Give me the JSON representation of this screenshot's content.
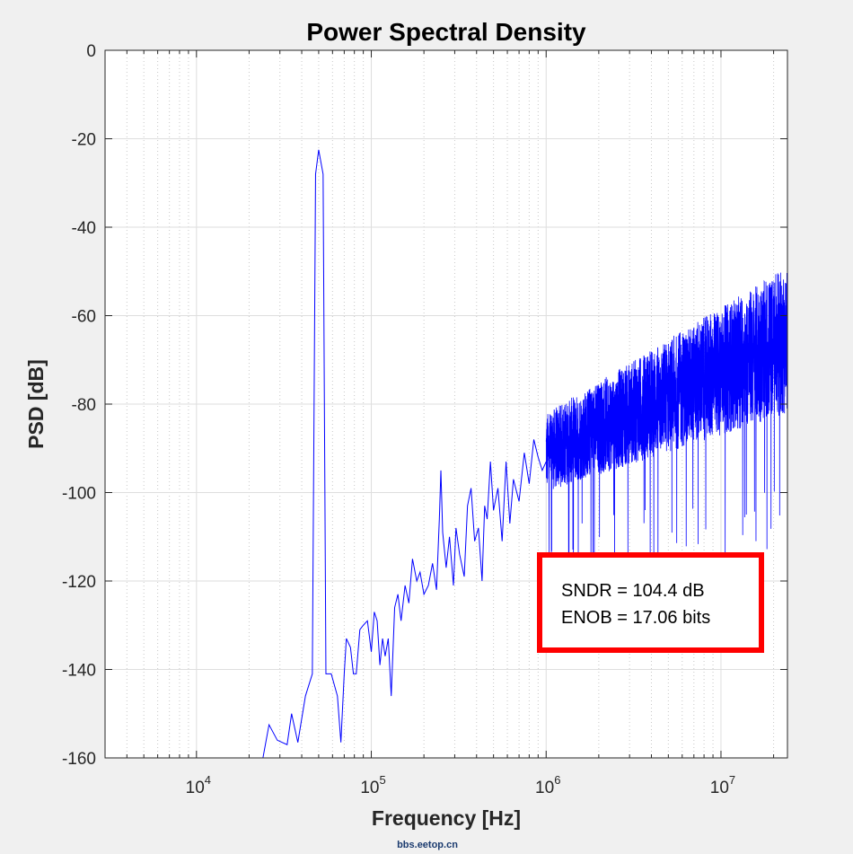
{
  "chart_data": {
    "type": "line",
    "title": "Power Spectral Density",
    "xlabel": "Frequency [Hz]",
    "ylabel": "PSD [dB]",
    "x_scale": "log",
    "xlim": [
      3000,
      24000000
    ],
    "ylim": [
      -160,
      0
    ],
    "grid": true,
    "x_ticks": [
      {
        "value": 10000,
        "base": "10",
        "exp": "4"
      },
      {
        "value": 100000,
        "base": "10",
        "exp": "5"
      },
      {
        "value": 1000000,
        "base": "10",
        "exp": "6"
      },
      {
        "value": 10000000,
        "base": "10",
        "exp": "7"
      }
    ],
    "y_ticks": [
      {
        "value": 0,
        "label": "0"
      },
      {
        "value": -20,
        "label": "-20"
      },
      {
        "value": -40,
        "label": "-40"
      },
      {
        "value": -60,
        "label": "-60"
      },
      {
        "value": -80,
        "label": "-80"
      },
      {
        "value": -100,
        "label": "-100"
      },
      {
        "value": -120,
        "label": "-120"
      },
      {
        "value": -140,
        "label": "-140"
      },
      {
        "value": -160,
        "label": "-160"
      }
    ],
    "series": [
      {
        "color": "#0000ff",
        "points": [
          [
            24000,
            -160
          ],
          [
            26000,
            -152.5
          ],
          [
            29000,
            -156
          ],
          [
            33000,
            -157
          ],
          [
            35000,
            -150
          ],
          [
            38000,
            -156.5
          ],
          [
            42000,
            -146
          ],
          [
            46000,
            -141
          ],
          [
            48000,
            -28
          ],
          [
            50000,
            -22.5
          ],
          [
            53000,
            -28
          ],
          [
            55000,
            -141
          ],
          [
            59000,
            -141
          ],
          [
            64000,
            -146
          ],
          [
            67000,
            -156.5
          ],
          [
            70000,
            -141
          ],
          [
            72000,
            -133
          ],
          [
            76000,
            -135
          ],
          [
            79000,
            -141
          ],
          [
            82000,
            -141
          ],
          [
            86000,
            -131
          ],
          [
            90000,
            -130
          ],
          [
            95000,
            -129
          ],
          [
            100000,
            -136
          ],
          [
            104000,
            -127
          ],
          [
            108000,
            -129
          ],
          [
            112000,
            -139
          ],
          [
            116000,
            -133
          ],
          [
            120000,
            -137
          ],
          [
            125000,
            -133
          ],
          [
            130000,
            -146
          ],
          [
            136000,
            -126
          ],
          [
            142000,
            -123
          ],
          [
            148000,
            -129
          ],
          [
            156000,
            -121
          ],
          [
            164000,
            -125
          ],
          [
            172000,
            -115
          ],
          [
            182000,
            -120
          ],
          [
            190000,
            -118
          ],
          [
            200000,
            -123
          ],
          [
            212000,
            -121
          ],
          [
            224000,
            -116
          ],
          [
            236000,
            -122
          ],
          [
            245000,
            -106
          ],
          [
            250000,
            -95
          ],
          [
            256000,
            -109
          ],
          [
            268000,
            -117
          ],
          [
            280000,
            -110
          ],
          [
            295000,
            -121
          ],
          [
            305000,
            -108
          ],
          [
            320000,
            -114
          ],
          [
            340000,
            -119
          ],
          [
            355000,
            -103
          ],
          [
            372000,
            -99
          ],
          [
            390000,
            -111
          ],
          [
            410000,
            -108
          ],
          [
            430000,
            -120
          ],
          [
            445000,
            -103
          ],
          [
            460000,
            -106
          ],
          [
            480000,
            -93
          ],
          [
            500000,
            -104
          ],
          [
            530000,
            -99
          ],
          [
            560000,
            -111
          ],
          [
            590000,
            -93
          ],
          [
            620000,
            -107
          ],
          [
            650000,
            -97
          ],
          [
            700000,
            -102
          ],
          [
            750000,
            -91
          ],
          [
            800000,
            -98
          ],
          [
            850000,
            -88
          ],
          [
            900000,
            -92
          ],
          [
            950000,
            -95
          ],
          [
            1000000,
            -93
          ]
        ]
      }
    ],
    "noise_band": {
      "color": "#0000ff",
      "start_hz": 1000000,
      "end_hz": 24000000,
      "upper_start_db": -82,
      "upper_end_db": -49,
      "lower_start_db": -103,
      "lower_end_db": -88,
      "spike_min_db": -125
    }
  },
  "annotation": {
    "line1": "SNDR = 104.4 dB",
    "line2": "ENOB = 17.06 bits",
    "border_color": "#ff0000"
  },
  "watermark": "bbs.eetop.cn"
}
